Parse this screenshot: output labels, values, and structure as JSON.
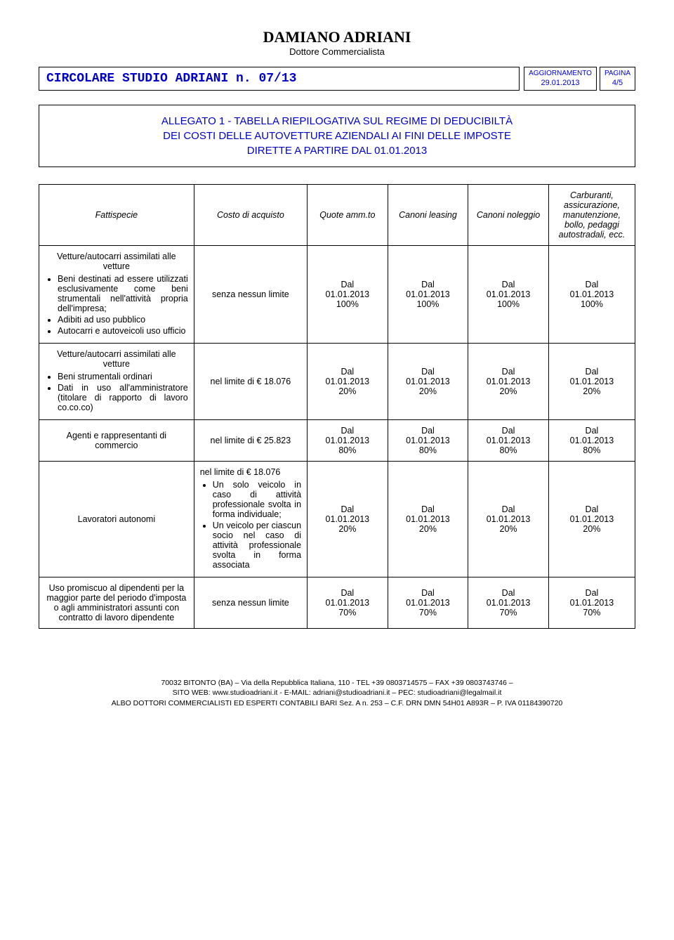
{
  "header": {
    "author": "DAMIANO ADRIANI",
    "subtitle": "Dottore Commercialista",
    "circolare": "CIRCOLARE STUDIO ADRIANI n. 07/13",
    "aggiornamento_label": "AGGIORNAMENTO",
    "aggiornamento_value": "29.01.2013",
    "pagina_label": "PAGINA",
    "pagina_value": "4/5"
  },
  "allegato": {
    "line1": "ALLEGATO 1 - TABELLA RIEPILOGATIVA SUL REGIME DI DEDUCIBILTÀ",
    "line2": "DEI COSTI DELLE AUTOVETTURE AZIENDALI AI FINI DELLE IMPOSTE",
    "line3": "DIRETTE A PARTIRE DAL 01.01.2013"
  },
  "table": {
    "headers": {
      "c0": "Fattispecie",
      "c1": "Costo di acquisto",
      "c2": "Quote amm.to",
      "c3": "Canoni leasing",
      "c4": "Canoni noleggio",
      "c5": "Carburanti, assicurazione, manutenzione, bollo, pedaggi autostradali, ecc."
    },
    "rows": [
      {
        "desc_title": "Vetture/autocarri assimilati alle vetture",
        "desc_items": [
          "Beni destinati ad essere utilizzati esclusivamente come beni strumentali nell'attività propria dell'impresa;",
          "Adibiti ad uso pubblico",
          "Autocarri e autoveicoli uso ufficio"
        ],
        "costo": "senza nessun limite",
        "val_lines": [
          "Dal",
          "01.01.2013",
          "100%"
        ]
      },
      {
        "desc_title": "Vetture/autocarri assimilati alle vetture",
        "desc_items": [
          "Beni strumentali ordinari",
          "Dati in uso all'amministratore (titolare di rapporto di lavoro co.co.co)"
        ],
        "costo": "nel limite di € 18.076",
        "val_lines": [
          "Dal",
          "01.01.2013",
          "20%"
        ]
      },
      {
        "desc_plain": "Agenti e rappresentanti di commercio",
        "costo": "nel limite di € 25.823",
        "val_lines": [
          "Dal",
          "01.01.2013",
          "80%"
        ]
      },
      {
        "desc_plain": "Lavoratori autonomi",
        "costo_pre": "nel limite di € 18.076",
        "costo_items": [
          "Un solo veicolo in caso di attività professionale svolta in forma individuale;",
          "Un veicolo per ciascun socio nel caso di attività professionale svolta in forma associata"
        ],
        "val_lines": [
          "Dal",
          "01.01.2013",
          "20%"
        ]
      },
      {
        "desc_plain": "Uso promiscuo al dipendenti per la maggior parte del periodo d'imposta o agli amministratori assunti con contratto di lavoro dipendente",
        "costo": "senza nessun limite",
        "val_lines": [
          "Dal",
          "01.01.2013",
          "70%"
        ]
      }
    ]
  },
  "footer": {
    "l1": "70032 BITONTO (BA) – Via della Repubblica Italiana, 110 - TEL +39 0803714575 – FAX +39 0803743746 –",
    "l2": "SITO WEB: www.studioadriani.it - E-MAIL: adriani@studioadriani.it – PEC: studioadriani@legalmail.it",
    "l3": "ALBO DOTTORI COMMERCIALISTI ED ESPERTI CONTABILI BARI Sez. A n. 253 – C.F. DRN DMN 54H01 A893R – P. IVA 01184390720"
  }
}
